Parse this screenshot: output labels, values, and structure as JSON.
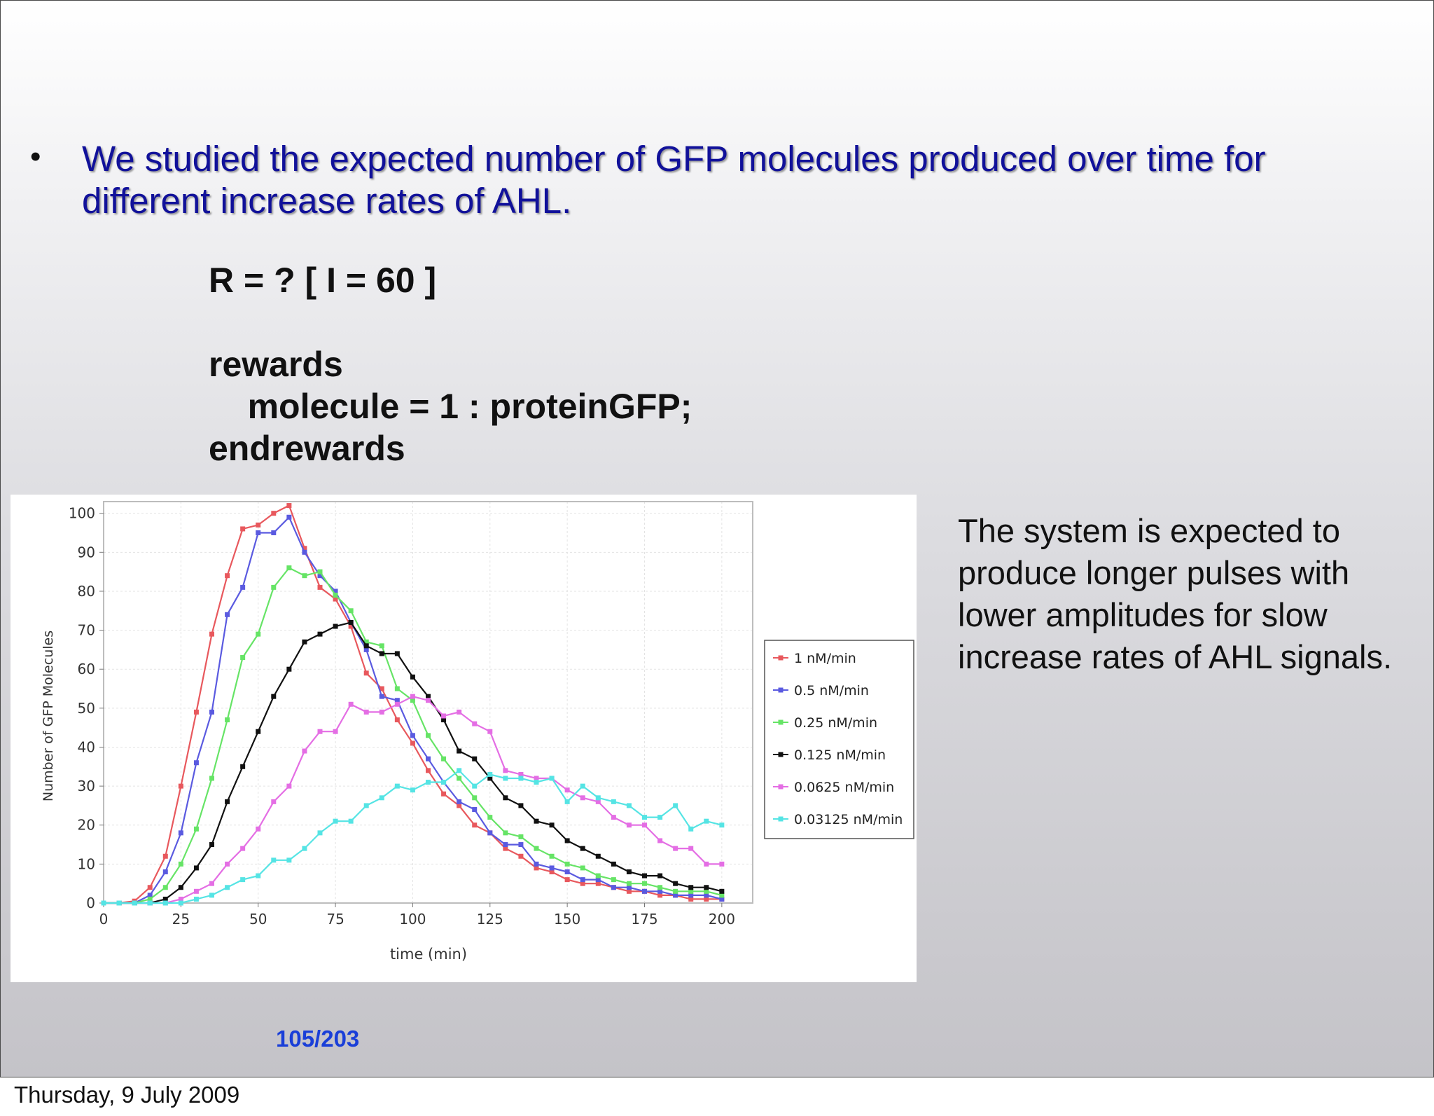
{
  "bullet": {
    "text": "We studied the expected number of GFP molecules produced over time for different increase rates of AHL."
  },
  "code_lines": [
    "R = ? [ I = 60 ]",
    "rewards",
    "    molecule = 1 : proteinGFP;",
    "endrewards"
  ],
  "side_text": "The system is expected to produce longer pulses with lower amplitudes for slow increase rates of AHL signals.",
  "page_number": "105/203",
  "footer_date": "Thursday, 9 July 2009",
  "chart_data": {
    "type": "line",
    "title": "",
    "xlabel": "time (min)",
    "ylabel": "Number of GFP Molecules",
    "xlim": [
      0,
      210
    ],
    "ylim": [
      0,
      103
    ],
    "xticks": [
      0,
      25,
      50,
      75,
      100,
      125,
      150,
      175,
      200
    ],
    "yticks": [
      0,
      10,
      20,
      30,
      40,
      50,
      60,
      70,
      80,
      90,
      100
    ],
    "grid": true,
    "legend_position": "right",
    "x": [
      0,
      5,
      10,
      15,
      20,
      25,
      30,
      35,
      40,
      45,
      50,
      55,
      60,
      65,
      70,
      75,
      80,
      85,
      90,
      95,
      100,
      105,
      110,
      115,
      120,
      125,
      130,
      135,
      140,
      145,
      150,
      155,
      160,
      165,
      170,
      175,
      180,
      185,
      190,
      195,
      200
    ],
    "series": [
      {
        "name": "1 nM/min",
        "color": "#e8585d",
        "values": [
          0,
          0,
          0.5,
          4,
          12,
          30,
          49,
          69,
          84,
          96,
          97,
          100,
          102,
          91,
          81,
          78,
          71,
          59,
          55,
          47,
          41,
          34,
          28,
          25,
          20,
          18,
          14,
          12,
          9,
          8,
          6,
          5,
          5,
          4,
          3,
          3,
          2,
          2,
          1,
          1,
          1
        ]
      },
      {
        "name": "0.5 nM/min",
        "color": "#5a5ae0",
        "values": [
          0,
          0,
          0,
          2,
          8,
          18,
          36,
          49,
          74,
          81,
          95,
          95,
          99,
          90,
          84,
          80,
          72,
          65,
          53,
          52,
          43,
          37,
          31,
          26,
          24,
          18,
          15,
          15,
          10,
          9,
          8,
          6,
          6,
          4,
          4,
          3,
          3,
          2,
          2,
          2,
          1
        ]
      },
      {
        "name": "0.25 nM/min",
        "color": "#66e466",
        "values": [
          0,
          0,
          0,
          1,
          4,
          10,
          19,
          32,
          47,
          63,
          69,
          81,
          86,
          84,
          85,
          79,
          75,
          67,
          66,
          55,
          52,
          43,
          37,
          32,
          27,
          22,
          18,
          17,
          14,
          12,
          10,
          9,
          7,
          6,
          5,
          5,
          4,
          3,
          3,
          3,
          2
        ]
      },
      {
        "name": "0.125 nM/min",
        "color": "#111111",
        "values": [
          0,
          0,
          0,
          0,
          1,
          4,
          9,
          15,
          26,
          35,
          44,
          53,
          60,
          67,
          69,
          71,
          72,
          66,
          64,
          64,
          58,
          53,
          47,
          39,
          37,
          32,
          27,
          25,
          21,
          20,
          16,
          14,
          12,
          10,
          8,
          7,
          7,
          5,
          4,
          4,
          3
        ]
      },
      {
        "name": "0.0625 nM/min",
        "color": "#e46ee4",
        "values": [
          0,
          0,
          0,
          0,
          0,
          1,
          3,
          5,
          10,
          14,
          19,
          26,
          30,
          39,
          44,
          44,
          51,
          49,
          49,
          51,
          53,
          52,
          48,
          49,
          46,
          44,
          34,
          33,
          32,
          32,
          29,
          27,
          26,
          22,
          20,
          20,
          16,
          14,
          14,
          10,
          10
        ]
      },
      {
        "name": "0.03125 nM/min",
        "color": "#55e4e4",
        "values": [
          0,
          0,
          0,
          0,
          0,
          0,
          1,
          2,
          4,
          6,
          7,
          11,
          11,
          14,
          18,
          21,
          21,
          25,
          27,
          30,
          29,
          31,
          31,
          34,
          30,
          33,
          32,
          32,
          31,
          32,
          26,
          30,
          27,
          26,
          25,
          22,
          22,
          25,
          19,
          21,
          20
        ]
      }
    ]
  }
}
